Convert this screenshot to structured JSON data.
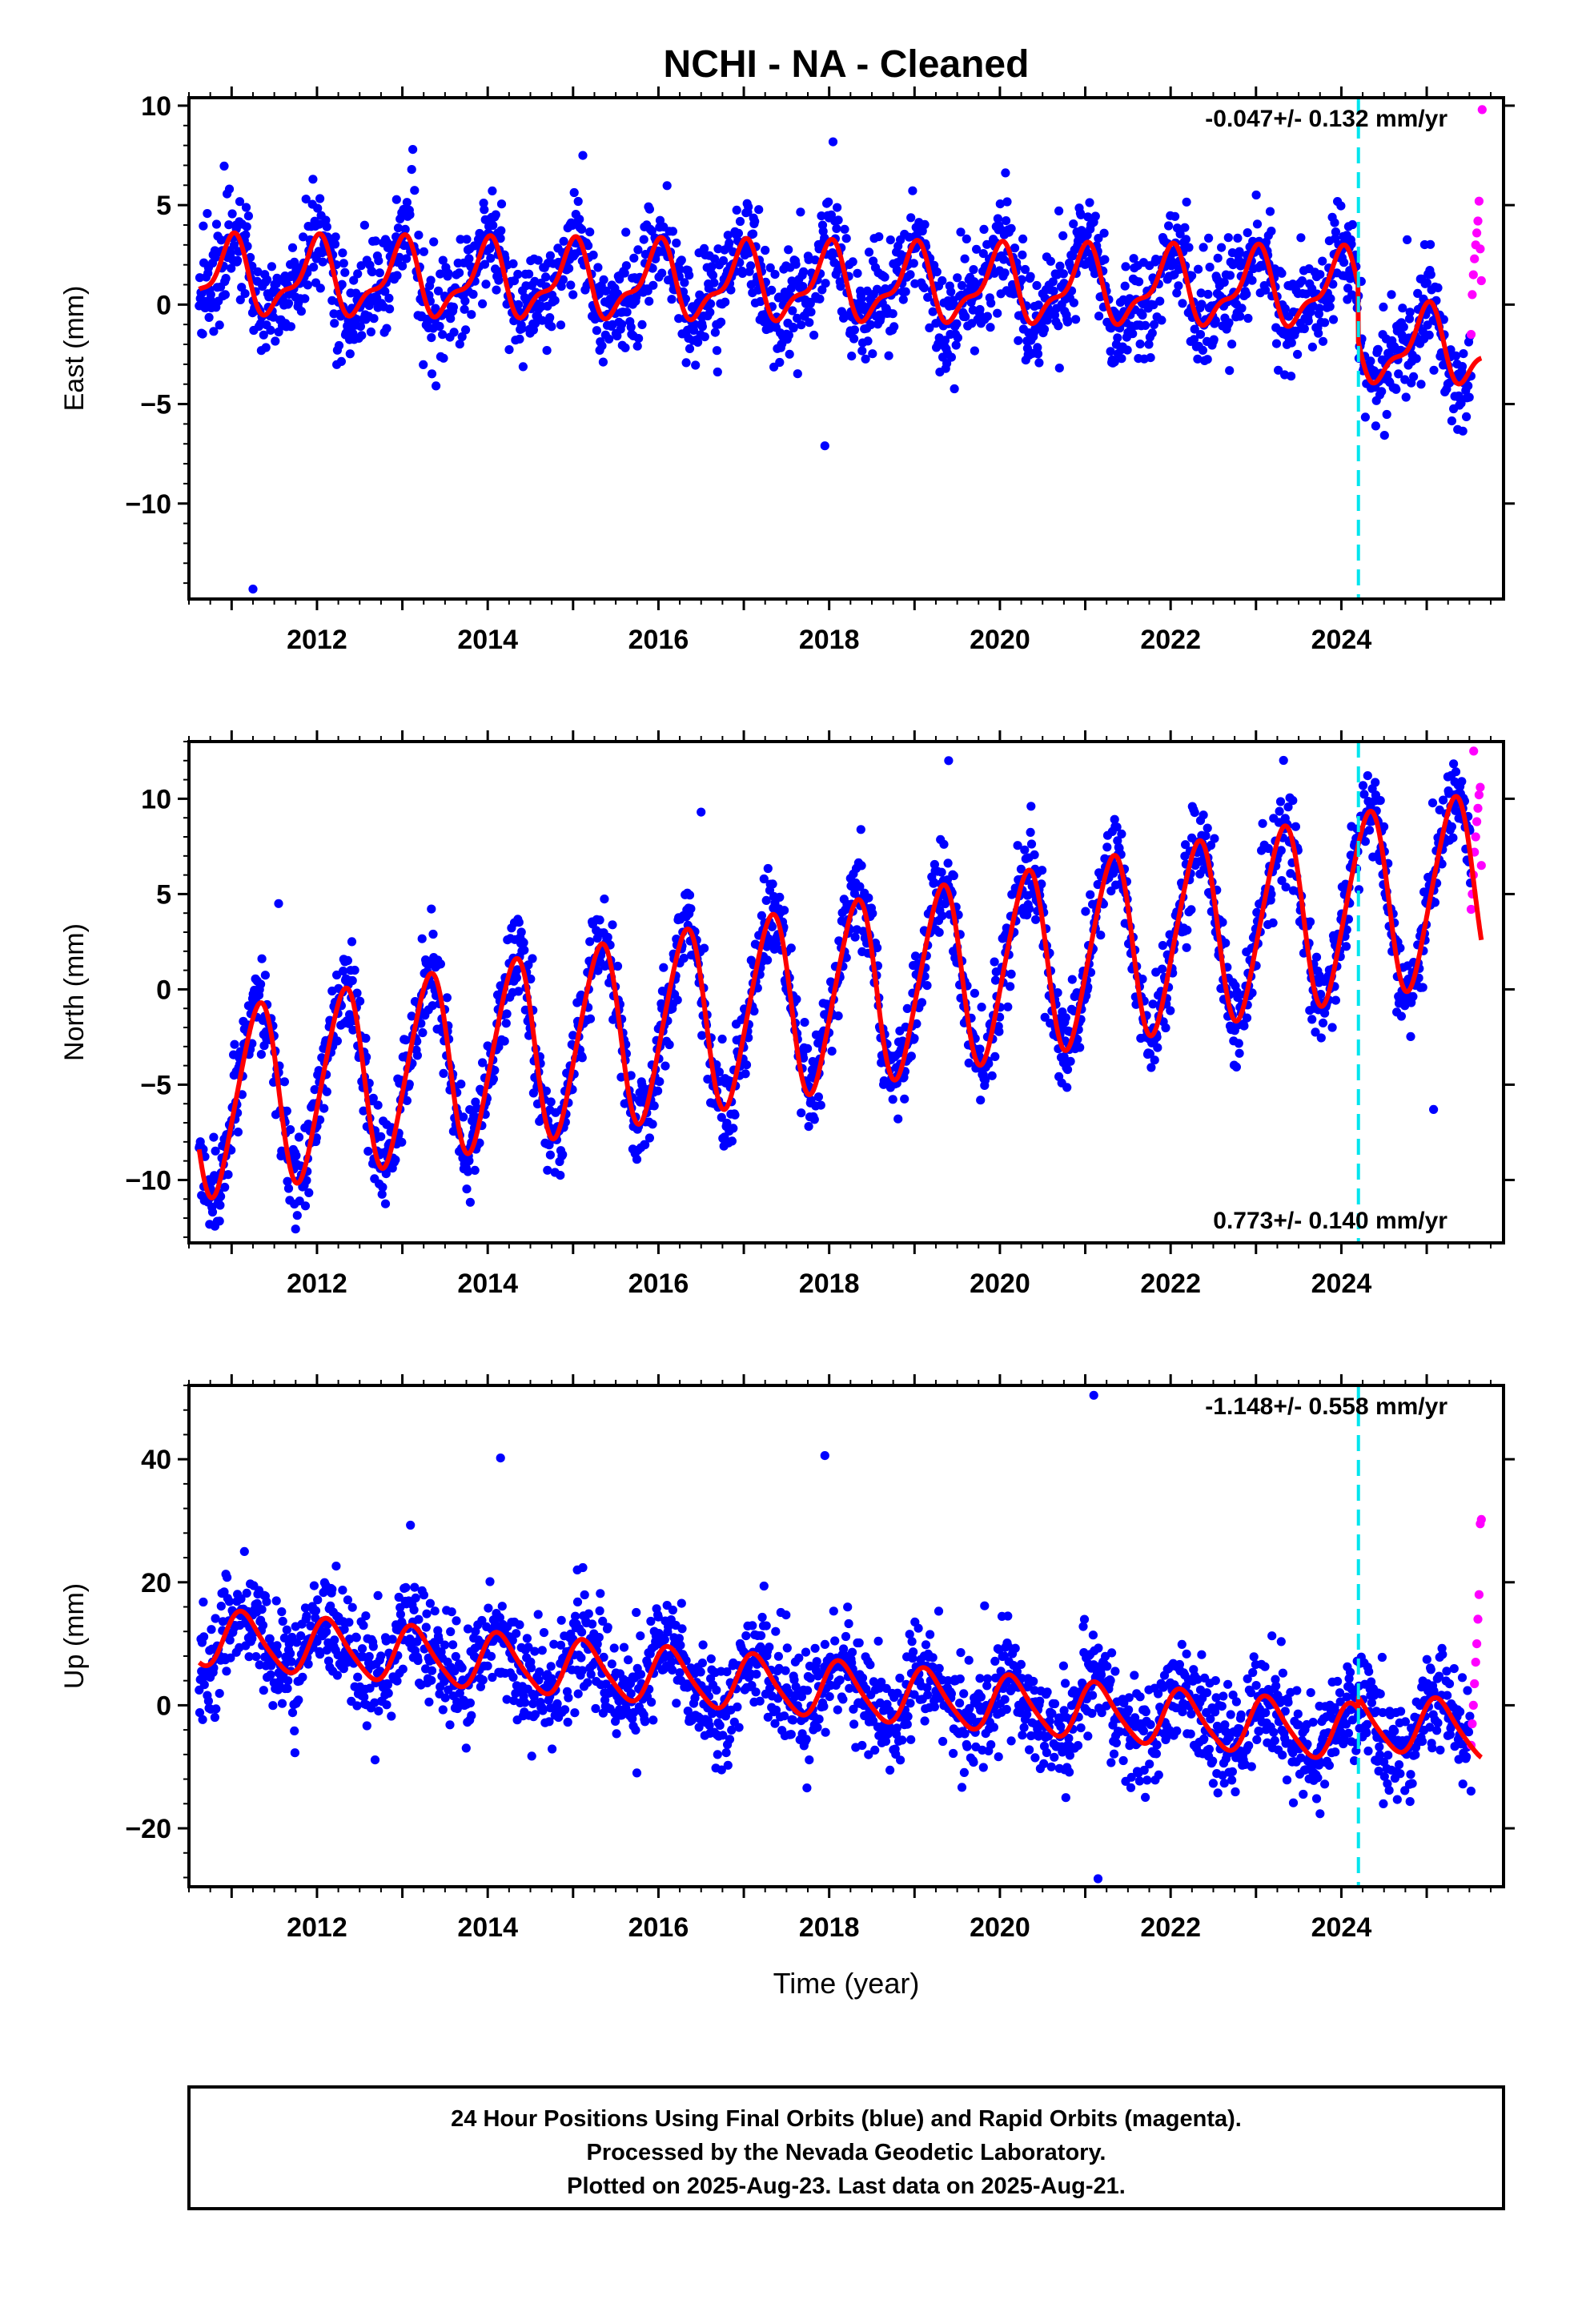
{
  "figure": {
    "title": "NCHI  - NA - Cleaned",
    "xlabel": "Time (year)",
    "footer": [
      "24 Hour Positions Using Final Orbits (blue) and Rapid Orbits (magenta).",
      "Processed by the Nevada Geodetic Laboratory.",
      "Plotted on 2025-Aug-23. Last data on 2025-Aug-21."
    ],
    "colors": {
      "final": "#0000ff",
      "rapid": "#ff00ff",
      "model": "#ff0000",
      "break": "#00e5ee",
      "frame": "#000000"
    }
  },
  "chart_data": [
    {
      "type": "scatter",
      "ylabel": "East (mm)",
      "xlim": [
        2010.5,
        2025.9
      ],
      "ylim": [
        -14.8,
        10.4
      ],
      "yticks": [
        -10,
        -5,
        0,
        5,
        10
      ],
      "xticks": [
        2012,
        2014,
        2016,
        2018,
        2020,
        2022,
        2024
      ],
      "rate_label": "-0.047+/- 0.132 mm/yr",
      "rate_position": "top-right",
      "break_epoch": 2024.2,
      "data_start": 2010.62,
      "rapid_start": 2025.52,
      "data_end": 2025.64,
      "model": {
        "intercept": 1.0,
        "rate": -0.047,
        "ref_year": 2018.0,
        "annual_cos": 1.7,
        "annual_sin": -0.2,
        "semiannual_cos": 0.5,
        "semiannual_sin": 0.5,
        "offset_at_break": -2.8
      },
      "scatter_sigma": 1.3,
      "outliers": [
        [
          2011.25,
          -14.3
        ],
        [
          2017.95,
          -7.1
        ],
        [
          2025.65,
          9.8
        ]
      ],
      "rapid_values": [
        -1.5,
        0.5,
        1.5,
        2.3,
        3.0,
        3.6,
        4.2,
        5.2,
        2.8,
        1.2
      ]
    },
    {
      "type": "scatter",
      "ylabel": "North (mm)",
      "xlim": [
        2010.5,
        2025.9
      ],
      "ylim": [
        -13.3,
        13.0
      ],
      "yticks": [
        -10,
        -5,
        0,
        5,
        10
      ],
      "xticks": [
        2012,
        2014,
        2016,
        2018,
        2020,
        2022,
        2024
      ],
      "rate_label": "0.773+/- 0.140 mm/yr",
      "rate_position": "bottom-right",
      "break_epoch": 2024.2,
      "data_start": 2010.62,
      "rapid_start": 2025.52,
      "data_end": 2025.64,
      "model": {
        "intercept": -0.4,
        "rate": 0.773,
        "ref_year": 2018.0,
        "annual_cos": -1.6,
        "annual_sin": 4.5,
        "semiannual_cos": 0.4,
        "semiannual_sin": -0.4,
        "offset_at_break": 0.0
      },
      "scatter_sigma": 1.2,
      "outliers": [
        [
          2011.55,
          4.5
        ],
        [
          2016.5,
          9.3
        ],
        [
          2019.4,
          12.0
        ],
        [
          2025.08,
          -6.3
        ],
        [
          2025.55,
          12.5
        ]
      ],
      "rapid_values": [
        4.2,
        5.0,
        6.0,
        7.2,
        8.0,
        8.8,
        9.5,
        10.2,
        10.6,
        6.5
      ]
    },
    {
      "type": "scatter",
      "ylabel": "Up (mm)",
      "xlim": [
        2010.5,
        2025.9
      ],
      "ylim": [
        -29.5,
        52.0
      ],
      "yticks": [
        -20,
        0,
        20,
        40
      ],
      "xticks": [
        2012,
        2014,
        2016,
        2018,
        2020,
        2022,
        2024
      ],
      "rate_label": "-1.148+/- 0.558 mm/yr",
      "rate_position": "top-right",
      "break_epoch": 2024.2,
      "data_start": 2010.62,
      "rapid_start": 2025.52,
      "data_end": 2025.64,
      "model": {
        "intercept": 2.5,
        "rate": -1.148,
        "ref_year": 2018.0,
        "annual_cos": 2.8,
        "annual_sin": 3.5,
        "semiannual_cos": 0.6,
        "semiannual_sin": 0.4,
        "offset_at_break": 2.0
      },
      "scatter_sigma": 4.3,
      "outliers": [
        [
          2014.15,
          40.2
        ],
        [
          2017.95,
          40.6
        ],
        [
          2021.1,
          50.4
        ],
        [
          2021.15,
          -28.2
        ],
        [
          2015.05,
          22.0
        ]
      ],
      "rapid_values": [
        -6.5,
        -3.0,
        0.0,
        3.5,
        7.0,
        10.0,
        14.0,
        18.0,
        29.5,
        30.2
      ]
    }
  ]
}
